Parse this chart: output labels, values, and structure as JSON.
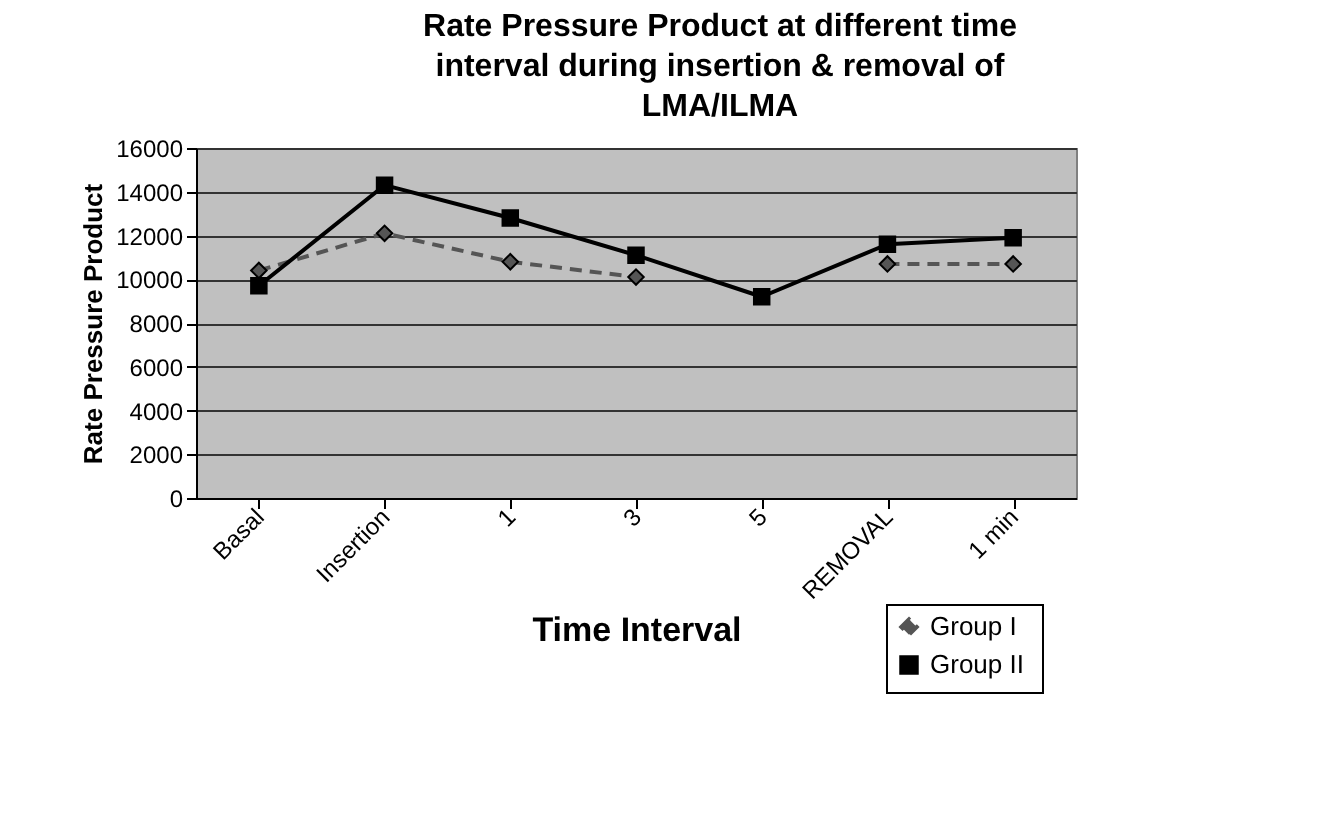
{
  "chart_data": {
    "type": "line",
    "title": "Rate Pressure Product at different time interval during insertion & removal of LMA/ILMA",
    "xlabel": "Time Interval",
    "ylabel": "Rate Pressure Product",
    "categories": [
      "Basal",
      "Insertion",
      "1",
      "3",
      "5",
      "REMOVAL",
      "1 min"
    ],
    "series": [
      {
        "name": "Group I",
        "color": "#555555",
        "marker": "diamond",
        "line_style": "dashed",
        "values": [
          10400,
          12100,
          10800,
          10100,
          null,
          10700,
          10700
        ]
      },
      {
        "name": "Group  II",
        "color": "#000000",
        "marker": "square",
        "line_style": "solid",
        "values": [
          9700,
          14300,
          12800,
          11100,
          9200,
          11600,
          11900
        ]
      }
    ],
    "ylim": [
      0,
      16000
    ],
    "yticks": [
      0,
      2000,
      4000,
      6000,
      8000,
      10000,
      12000,
      14000,
      16000
    ],
    "grid": "y",
    "legend": "bottom right"
  }
}
